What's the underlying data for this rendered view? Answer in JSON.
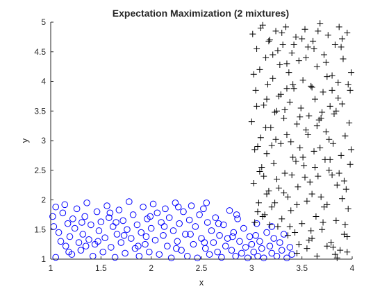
{
  "chart_data": {
    "type": "scatter",
    "title": "Expectation Maximization (2 mixtures)",
    "xlabel": "x",
    "ylabel": "y",
    "xlim": [
      1,
      4
    ],
    "ylim": [
      1,
      5
    ],
    "xticks": [
      "1",
      "1.5",
      "2",
      "2.5",
      "3",
      "3.5",
      "4"
    ],
    "yticks": [
      "1",
      "1.5",
      "2",
      "2.5",
      "3",
      "3.5",
      "4",
      "4.5",
      "5"
    ],
    "grid": false,
    "series": [
      {
        "marker": "circle",
        "color": "#0000ff",
        "points": [
          [
            1.02,
            1.72
          ],
          [
            1.03,
            1.55
          ],
          [
            1.05,
            1.03
          ],
          [
            1.08,
            1.45
          ],
          [
            1.1,
            1.3
          ],
          [
            1.12,
            1.78
          ],
          [
            1.14,
            1.92
          ],
          [
            1.15,
            1.22
          ],
          [
            1.17,
            1.6
          ],
          [
            1.19,
            1.38
          ],
          [
            1.21,
            1.08
          ],
          [
            1.22,
            1.68
          ],
          [
            1.24,
            1.52
          ],
          [
            1.26,
            1.85
          ],
          [
            1.28,
            1.28
          ],
          [
            1.3,
            1.15
          ],
          [
            1.32,
            1.42
          ],
          [
            1.34,
            1.72
          ],
          [
            1.36,
            1.95
          ],
          [
            1.38,
            1.33
          ],
          [
            1.4,
            1.58
          ],
          [
            1.42,
            1.05
          ],
          [
            1.44,
            1.25
          ],
          [
            1.46,
            1.8
          ],
          [
            1.48,
            1.48
          ],
          [
            1.5,
            1.63
          ],
          [
            1.52,
            1.12
          ],
          [
            1.54,
            1.36
          ],
          [
            1.56,
            1.9
          ],
          [
            1.58,
            1.7
          ],
          [
            1.6,
            1.2
          ],
          [
            1.62,
            1.55
          ],
          [
            1.64,
            1.03
          ],
          [
            1.66,
            1.42
          ],
          [
            1.68,
            1.83
          ],
          [
            1.7,
            1.28
          ],
          [
            1.72,
            1.65
          ],
          [
            1.74,
            1.1
          ],
          [
            1.76,
            1.5
          ],
          [
            1.78,
            1.97
          ],
          [
            1.8,
            1.35
          ],
          [
            1.82,
            1.75
          ],
          [
            1.84,
            1.18
          ],
          [
            1.86,
            1.58
          ],
          [
            1.88,
            1.05
          ],
          [
            1.9,
            1.45
          ],
          [
            1.92,
            1.88
          ],
          [
            1.94,
            1.25
          ],
          [
            1.96,
            1.68
          ],
          [
            1.98,
            1.12
          ],
          [
            2.0,
            1.52
          ],
          [
            2.02,
            1.93
          ],
          [
            2.04,
            1.32
          ],
          [
            2.06,
            1.78
          ],
          [
            2.08,
            1.08
          ],
          [
            2.1,
            1.62
          ],
          [
            2.12,
            1.4
          ],
          [
            2.14,
            1.85
          ],
          [
            2.16,
            1.22
          ],
          [
            2.18,
            1.7
          ],
          [
            2.2,
            1.02
          ],
          [
            2.22,
            1.48
          ],
          [
            2.24,
            1.95
          ],
          [
            2.26,
            1.3
          ],
          [
            2.28,
            1.6
          ],
          [
            2.3,
            1.15
          ],
          [
            2.32,
            1.8
          ],
          [
            2.34,
            1.42
          ],
          [
            2.36,
            1.05
          ],
          [
            2.38,
            1.66
          ],
          [
            2.4,
            1.9
          ],
          [
            2.42,
            1.25
          ],
          [
            2.44,
            1.55
          ],
          [
            2.46,
            1.02
          ],
          [
            2.48,
            1.75
          ],
          [
            2.5,
            1.35
          ],
          [
            2.52,
            1.85
          ],
          [
            2.54,
            1.18
          ],
          [
            2.56,
            1.62
          ],
          [
            2.58,
            1.08
          ],
          [
            2.6,
            1.48
          ],
          [
            2.62,
            1.28
          ],
          [
            2.64,
            1.7
          ],
          [
            2.66,
            1.12
          ],
          [
            2.68,
            1.4
          ],
          [
            2.7,
            1.03
          ],
          [
            2.72,
            1.58
          ],
          [
            2.74,
            1.22
          ],
          [
            2.76,
            1.35
          ],
          [
            2.78,
            1.82
          ],
          [
            2.8,
            1.15
          ],
          [
            2.82,
            1.45
          ],
          [
            2.84,
            1.05
          ],
          [
            2.86,
            1.68
          ],
          [
            2.88,
            1.3
          ],
          [
            2.9,
            1.1
          ],
          [
            2.92,
            1.52
          ],
          [
            2.94,
            1.2
          ],
          [
            2.96,
            1.02
          ],
          [
            2.98,
            1.38
          ],
          [
            1.05,
            1.88
          ],
          [
            1.18,
            1.12
          ],
          [
            1.31,
            1.62
          ],
          [
            1.47,
            1.3
          ],
          [
            1.59,
            1.78
          ],
          [
            1.73,
            1.4
          ],
          [
            1.87,
            1.22
          ],
          [
            1.99,
            1.72
          ],
          [
            2.13,
            1.55
          ],
          [
            2.27,
            1.88
          ],
          [
            2.39,
            1.42
          ],
          [
            2.53,
            1.28
          ],
          [
            2.67,
            1.6
          ],
          [
            2.81,
            1.38
          ],
          [
            3.0,
            1.25
          ],
          [
            3.02,
            1.12
          ],
          [
            3.04,
            1.4
          ],
          [
            3.06,
            1.05
          ],
          [
            3.08,
            1.3
          ],
          [
            3.1,
            1.18
          ],
          [
            3.12,
            1.02
          ],
          [
            3.15,
            1.45
          ],
          [
            3.18,
            1.22
          ],
          [
            3.2,
            1.1
          ],
          [
            3.22,
            1.35
          ],
          [
            3.25,
            1.05
          ],
          [
            3.28,
            1.28
          ],
          [
            3.3,
            1.15
          ],
          [
            3.32,
            1.42
          ],
          [
            3.35,
            1.02
          ],
          [
            3.38,
            1.2
          ],
          [
            3.4,
            1.08
          ],
          [
            1.35,
            1.22
          ],
          [
            1.65,
            1.62
          ],
          [
            1.95,
            1.38
          ],
          [
            2.25,
            1.18
          ],
          [
            2.55,
            1.95
          ],
          [
            2.85,
            1.75
          ],
          [
            3.05,
            1.6
          ],
          [
            3.2,
            1.55
          ]
        ]
      },
      {
        "marker": "plus",
        "color": "#000000",
        "points": [
          [
            3.0,
            3.32
          ],
          [
            3.01,
            4.8
          ],
          [
            3.02,
            2.28
          ],
          [
            3.03,
            1.62
          ],
          [
            3.04,
            3.85
          ],
          [
            3.05,
            4.55
          ],
          [
            3.06,
            2.9
          ],
          [
            3.07,
            1.95
          ],
          [
            3.08,
            4.2
          ],
          [
            3.09,
            3.05
          ],
          [
            3.1,
            2.55
          ],
          [
            3.11,
            4.95
          ],
          [
            3.12,
            3.6
          ],
          [
            3.13,
            1.75
          ],
          [
            3.14,
            4.4
          ],
          [
            3.15,
            2.78
          ],
          [
            3.16,
            3.95
          ],
          [
            3.17,
            2.15
          ],
          [
            3.18,
            4.7
          ],
          [
            3.19,
            3.22
          ],
          [
            3.2,
            1.88
          ],
          [
            3.21,
            4.05
          ],
          [
            3.22,
            2.62
          ],
          [
            3.23,
            3.48
          ],
          [
            3.24,
            4.85
          ],
          [
            3.25,
            2.35
          ],
          [
            3.26,
            1.55
          ],
          [
            3.27,
            3.75
          ],
          [
            3.28,
            4.28
          ],
          [
            3.29,
            2.95
          ],
          [
            3.3,
            1.68
          ],
          [
            3.31,
            4.62
          ],
          [
            3.32,
            3.38
          ],
          [
            3.33,
            2.45
          ],
          [
            3.34,
            4.92
          ],
          [
            3.35,
            3.1
          ],
          [
            3.36,
            2.05
          ],
          [
            3.37,
            4.15
          ],
          [
            3.38,
            3.65
          ],
          [
            3.39,
            1.82
          ],
          [
            3.4,
            4.48
          ],
          [
            3.41,
            2.72
          ],
          [
            3.42,
            3.88
          ],
          [
            3.43,
            1.45
          ],
          [
            3.44,
            4.75
          ],
          [
            3.45,
            3.28
          ],
          [
            3.46,
            2.22
          ],
          [
            3.47,
            4.35
          ],
          [
            3.48,
            2.88
          ],
          [
            3.49,
            3.55
          ],
          [
            3.5,
            1.6
          ],
          [
            3.51,
            4.02
          ],
          [
            3.52,
            2.58
          ],
          [
            3.53,
            4.88
          ],
          [
            3.54,
            3.18
          ],
          [
            3.55,
            1.98
          ],
          [
            3.56,
            4.58
          ],
          [
            3.57,
            3.42
          ],
          [
            3.58,
            2.3
          ],
          [
            3.59,
            3.92
          ],
          [
            3.6,
            1.35
          ],
          [
            3.61,
            4.68
          ],
          [
            3.62,
            2.82
          ],
          [
            3.63,
            3.7
          ],
          [
            3.64,
            1.72
          ],
          [
            3.65,
            4.25
          ],
          [
            3.66,
            2.4
          ],
          [
            3.67,
            3.35
          ],
          [
            3.68,
            4.98
          ],
          [
            3.69,
            2.05
          ],
          [
            3.7,
            1.5
          ],
          [
            3.71,
            3.82
          ],
          [
            3.72,
            4.45
          ],
          [
            3.73,
            2.68
          ],
          [
            3.74,
            3.15
          ],
          [
            3.75,
            1.92
          ],
          [
            3.76,
            4.78
          ],
          [
            3.77,
            2.5
          ],
          [
            3.78,
            3.58
          ],
          [
            3.79,
            1.28
          ],
          [
            3.8,
            4.1
          ],
          [
            3.81,
            2.95
          ],
          [
            3.82,
            3.45
          ],
          [
            3.83,
            4.62
          ],
          [
            3.84,
            1.65
          ],
          [
            3.85,
            2.25
          ],
          [
            3.86,
            3.98
          ],
          [
            3.87,
            4.92
          ],
          [
            3.88,
            1.15
          ],
          [
            3.89,
            2.75
          ],
          [
            3.9,
            3.62
          ],
          [
            3.91,
            4.38
          ],
          [
            3.92,
            1.42
          ],
          [
            3.93,
            3.08
          ],
          [
            3.94,
            2.18
          ],
          [
            3.95,
            4.82
          ],
          [
            3.96,
            1.85
          ],
          [
            3.97,
            3.3
          ],
          [
            3.98,
            2.6
          ],
          [
            3.99,
            4.15
          ],
          [
            3.02,
            4.12
          ],
          [
            3.05,
            3.58
          ],
          [
            3.08,
            2.48
          ],
          [
            3.11,
            1.72
          ],
          [
            3.14,
            3.22
          ],
          [
            3.17,
            4.68
          ],
          [
            3.2,
            2.92
          ],
          [
            3.23,
            1.95
          ],
          [
            3.26,
            4.52
          ],
          [
            3.29,
            3.78
          ],
          [
            3.32,
            2.12
          ],
          [
            3.35,
            4.3
          ],
          [
            3.38,
            1.55
          ],
          [
            3.41,
            3.95
          ],
          [
            3.44,
            2.65
          ],
          [
            3.47,
            1.25
          ],
          [
            3.5,
            4.72
          ],
          [
            3.53,
            2.38
          ],
          [
            3.56,
            3.1
          ],
          [
            3.59,
            1.48
          ],
          [
            3.62,
            4.55
          ],
          [
            3.65,
            3.25
          ],
          [
            3.68,
            2.88
          ],
          [
            3.71,
            1.62
          ],
          [
            3.74,
            4.32
          ],
          [
            3.77,
            3.02
          ],
          [
            3.8,
            2.42
          ],
          [
            3.83,
            1.08
          ],
          [
            3.86,
            3.72
          ],
          [
            3.89,
            4.58
          ],
          [
            3.92,
            2.32
          ],
          [
            3.95,
            1.38
          ],
          [
            3.98,
            3.85
          ],
          [
            3.03,
            2.85
          ],
          [
            3.06,
            1.8
          ],
          [
            3.09,
            4.9
          ],
          [
            3.12,
            2.4
          ],
          [
            3.15,
            3.7
          ],
          [
            3.18,
            1.58
          ],
          [
            3.21,
            4.45
          ],
          [
            3.24,
            3.02
          ],
          [
            3.27,
            2.2
          ],
          [
            3.3,
            4.82
          ],
          [
            3.33,
            3.52
          ],
          [
            3.36,
            1.4
          ],
          [
            3.39,
            2.98
          ],
          [
            3.42,
            4.62
          ],
          [
            3.45,
            1.92
          ],
          [
            3.48,
            3.4
          ],
          [
            3.51,
            2.72
          ],
          [
            3.54,
            4.4
          ],
          [
            3.57,
            1.32
          ],
          [
            3.6,
            3.9
          ],
          [
            3.63,
            2.55
          ],
          [
            3.66,
            4.85
          ],
          [
            3.69,
            3.38
          ],
          [
            3.72,
            1.88
          ],
          [
            3.75,
            4.08
          ],
          [
            3.78,
            2.68
          ],
          [
            3.81,
            1.2
          ],
          [
            3.84,
            3.5
          ],
          [
            3.87,
            2.45
          ],
          [
            3.9,
            4.72
          ],
          [
            3.93,
            1.58
          ],
          [
            3.96,
            3.95
          ],
          [
            3.99,
            2.85
          ],
          [
            3.45,
            1.1
          ],
          [
            3.55,
            1.18
          ],
          [
            3.65,
            1.05
          ],
          [
            3.75,
            1.22
          ],
          [
            3.85,
            1.02
          ],
          [
            3.95,
            1.12
          ],
          [
            3.4,
            2.42
          ],
          [
            3.6,
            2.1
          ],
          [
            3.7,
            3.48
          ],
          [
            3.8,
            3.85
          ],
          [
            3.9,
            2.02
          ],
          [
            3.35,
            3.88
          ],
          [
            3.25,
            3.5
          ],
          [
            3.15,
            2.1
          ]
        ]
      }
    ]
  }
}
